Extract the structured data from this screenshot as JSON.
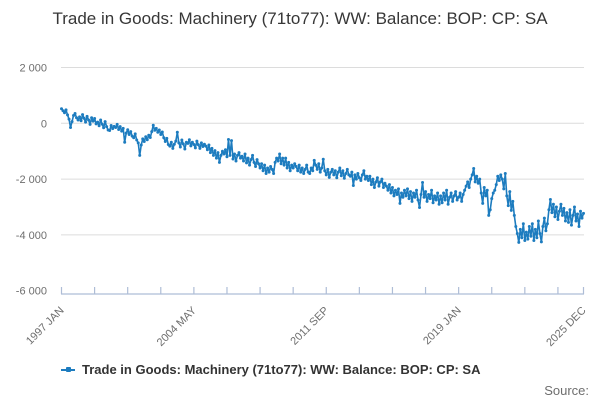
{
  "title": "Trade in Goods: Machinery (71to77): WW: Balance: BOP: CP: SA",
  "legend": {
    "label": "Trade in Goods: Machinery (71to77): WW: Balance: BOP: CP: SA"
  },
  "source": {
    "label": "Source:"
  },
  "colors": {
    "line": "#1d7cbf",
    "grid": "#dcdcdc",
    "axis": "#aebdd6",
    "tick_label": "#6e6e6e",
    "title_text": "#373737",
    "legend_text": "#333333",
    "source_text": "#6e6e6e"
  },
  "chart_data": {
    "type": "line",
    "title": "Trade in Goods: Machinery (71to77): WW: Balance: BOP: CP: SA",
    "frequency": "monthly",
    "x_start": "1997-01",
    "x_end": "2025-12",
    "x_tick_labels": [
      "1997 JAN",
      "2004 MAY",
      "2011 SEP",
      "2019 JAN",
      "2025 DEC"
    ],
    "x_tick_label_months": [
      0,
      88,
      176,
      264,
      347
    ],
    "minor_tick_interval_months": 22,
    "y_ticks": [
      2000,
      0,
      -2000,
      -4000,
      -6000
    ],
    "y_tick_labels": [
      "2 000",
      "0",
      "-2 000",
      "-4 000",
      "-6 000"
    ],
    "ylim": [
      -6000,
      2000
    ],
    "grid": true,
    "legend_position": "bottom",
    "values": [
      520,
      450,
      380,
      480,
      300,
      150,
      -150,
      60,
      280,
      350,
      200,
      120,
      230,
      90,
      310,
      180,
      40,
      250,
      120,
      -40,
      200,
      80,
      170,
      -20,
      40,
      -90,
      120,
      -30,
      -160,
      60,
      -120,
      -240,
      -260,
      -80,
      -190,
      -110,
      -150,
      -40,
      -220,
      -120,
      -280,
      -180,
      -680,
      -350,
      -230,
      -400,
      -300,
      -460,
      -520,
      -380,
      -600,
      -700,
      -1150,
      -780,
      -560,
      -650,
      -480,
      -590,
      -430,
      -510,
      -300,
      -70,
      -250,
      -180,
      -320,
      -240,
      -400,
      -310,
      -520,
      -650,
      -540,
      -760,
      -820,
      -680,
      -900,
      -750,
      -640,
      -320,
      -700,
      -850,
      -600,
      -740,
      -920,
      -680,
      -720,
      -590,
      -810,
      -680,
      -760,
      -880,
      -640,
      -770,
      -900,
      -700,
      -830,
      -750,
      -820,
      -950,
      -780,
      -1050,
      -900,
      -1150,
      -980,
      -1250,
      -1050,
      -1400,
      -1150,
      -1000,
      -1100,
      -950,
      -1200,
      -580,
      -1150,
      -620,
      -1280,
      -1100,
      -1350,
      -1150,
      -1050,
      -1250,
      -1180,
      -1350,
      -1100,
      -1420,
      -1250,
      -1500,
      -1300,
      -1150,
      -1400,
      -1550,
      -1300,
      -1450,
      -1600,
      -1450,
      -1700,
      -1500,
      -1800,
      -1600,
      -1750,
      -1550,
      -1650,
      -1800,
      -1400,
      -1250,
      -1350,
      -1100,
      -1450,
      -1250,
      -1500,
      -1250,
      -1600,
      -1400,
      -1700,
      -1500,
      -1600,
      -1450,
      -1550,
      -1700,
      -1500,
      -1750,
      -1600,
      -1800,
      -1650,
      -1500,
      -1750,
      -1800,
      -1600,
      -1700,
      -1330,
      -1500,
      -1650,
      -1450,
      -1750,
      -1600,
      -1290,
      -1700,
      -1850,
      -1650,
      -1940,
      -1750,
      -1650,
      -1850,
      -1700,
      -1950,
      -1750,
      -1600,
      -1880,
      -1700,
      -1970,
      -1800,
      -1650,
      -1850,
      -1900,
      -1750,
      -2230,
      -1850,
      -2000,
      -1800,
      -1950,
      -2050,
      -1850,
      -1700,
      -2000,
      -1900,
      -2050,
      -1900,
      -2200,
      -2000,
      -2300,
      -2100,
      -1950,
      -2250,
      -2100,
      -2000,
      -2300,
      -2150,
      -2250,
      -2400,
      -2200,
      -2500,
      -2300,
      -2600,
      -2400,
      -2550,
      -2350,
      -2870,
      -2500,
      -2650,
      -2400,
      -2600,
      -2350,
      -2700,
      -2450,
      -2800,
      -2500,
      -2650,
      -2400,
      -2750,
      -3020,
      -2550,
      -2120,
      -2650,
      -2450,
      -2800,
      -2550,
      -2700,
      -2400,
      -2850,
      -2600,
      -2750,
      -2500,
      -2900,
      -2600,
      -2850,
      -2500,
      -2750,
      -2400,
      -2900,
      -2650,
      -2500,
      -2800,
      -2600,
      -2450,
      -2750,
      -2650,
      -2500,
      -2800,
      -2550,
      -2400,
      -2250,
      -2100,
      -2300,
      -2000,
      -1850,
      -1620,
      -2100,
      -1900,
      -2150,
      -2000,
      -2500,
      -2870,
      -2300,
      -2600,
      -2400,
      -3300,
      -3100,
      -2700,
      -2500,
      -2400,
      -2200,
      -1900,
      -2050,
      -1850,
      -2000,
      -2350,
      -1800,
      -2600,
      -2950,
      -2450,
      -3120,
      -2800,
      -3300,
      -3700,
      -3950,
      -4270,
      -3800,
      -4100,
      -3600,
      -4200,
      -3900,
      -4150,
      -3700,
      -4050,
      -3600,
      -4200,
      -3800,
      -4100,
      -3500,
      -3950,
      -4250,
      -3700,
      -3400,
      -3850,
      -3600,
      -3100,
      -2730,
      -3200,
      -2900,
      -3350,
      -3000,
      -3450,
      -3150,
      -2900,
      -3300,
      -3050,
      -3500,
      -3200,
      -3550,
      -3100,
      -3650,
      -3300,
      -3000,
      -3500,
      -3250,
      -3700,
      -3150,
      -3400,
      -3230
    ]
  }
}
